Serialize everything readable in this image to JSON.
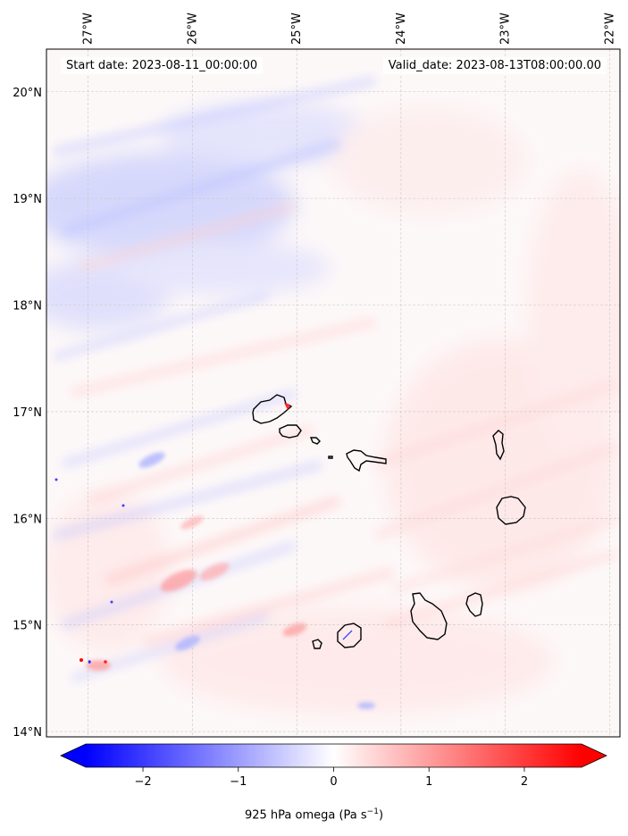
{
  "map": {
    "start_label": "Start date: 2023-08-11_00:00:00",
    "valid_label": "Valid_date: 2023-08-13T08:00:00.00",
    "lon_ticks": [
      "27°W",
      "26°W",
      "25°W",
      "24°W",
      "23°W",
      "22°W"
    ],
    "lat_ticks": [
      "20°N",
      "19°N",
      "18°N",
      "17°N",
      "16°N",
      "15°N",
      "14°N"
    ],
    "lon_range": [
      -27.4,
      -21.9
    ],
    "lat_range": [
      13.95,
      20.4
    ],
    "gridlines": true,
    "field": "925 hPa omega",
    "islands": [
      "Santo Antão",
      "São Vicente",
      "Santa Luzia",
      "São Nicolau",
      "Sal",
      "Boa Vista",
      "Brava",
      "Fogo",
      "Santiago",
      "Maio"
    ]
  },
  "colorbar": {
    "label_prefix": "925 hPa omega (Pa s",
    "label_exp": "−1",
    "label_suffix": ")",
    "ticks": [
      "−2",
      "−1",
      "0",
      "1",
      "2"
    ],
    "range": [
      -2.6,
      2.6
    ],
    "cmap": "bwr",
    "low_color": "#0000ff",
    "mid_color": "#ffffff",
    "high_color": "#ff0000",
    "extend": "both"
  }
}
